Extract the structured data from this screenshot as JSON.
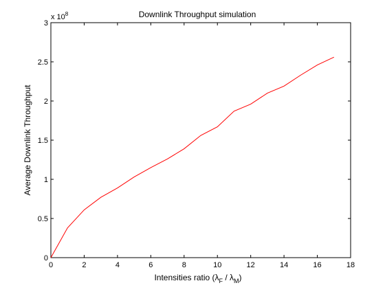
{
  "chart_data": {
    "type": "line",
    "title": "Downlink Throughput simulation",
    "xlabel": {
      "prefix": "Intensities ratio (",
      "lambda_f": "λ",
      "sub_f": "F",
      "slash": " / ",
      "lambda_m": "λ",
      "sub_m": "M",
      "suffix": ")"
    },
    "ylabel": "Average Downlink Throughput",
    "xlim": [
      0,
      18
    ],
    "ylim": [
      0,
      3
    ],
    "y_exponent": {
      "base": "x 10",
      "exp": "8"
    },
    "xticks": [
      0,
      2,
      4,
      6,
      8,
      10,
      12,
      14,
      16,
      18
    ],
    "yticks": [
      0,
      0.5,
      1,
      1.5,
      2,
      2.5,
      3
    ],
    "xtick_labels": [
      "0",
      "2",
      "4",
      "6",
      "8",
      "10",
      "12",
      "14",
      "16",
      "18"
    ],
    "ytick_labels": [
      "0",
      "0.5",
      "1",
      "1.5",
      "2",
      "2.5",
      "3"
    ],
    "grid": false,
    "series": [
      {
        "color": "#ff0000",
        "x": [
          0,
          1,
          2,
          3,
          4,
          5,
          6,
          7,
          8,
          9,
          10,
          11,
          12,
          13,
          14,
          15,
          16,
          17
        ],
        "y": [
          0,
          0.38,
          0.61,
          0.77,
          0.89,
          1.03,
          1.15,
          1.26,
          1.39,
          1.56,
          1.67,
          1.87,
          1.96,
          2.1,
          2.19,
          2.33,
          2.46,
          2.56
        ]
      }
    ]
  }
}
